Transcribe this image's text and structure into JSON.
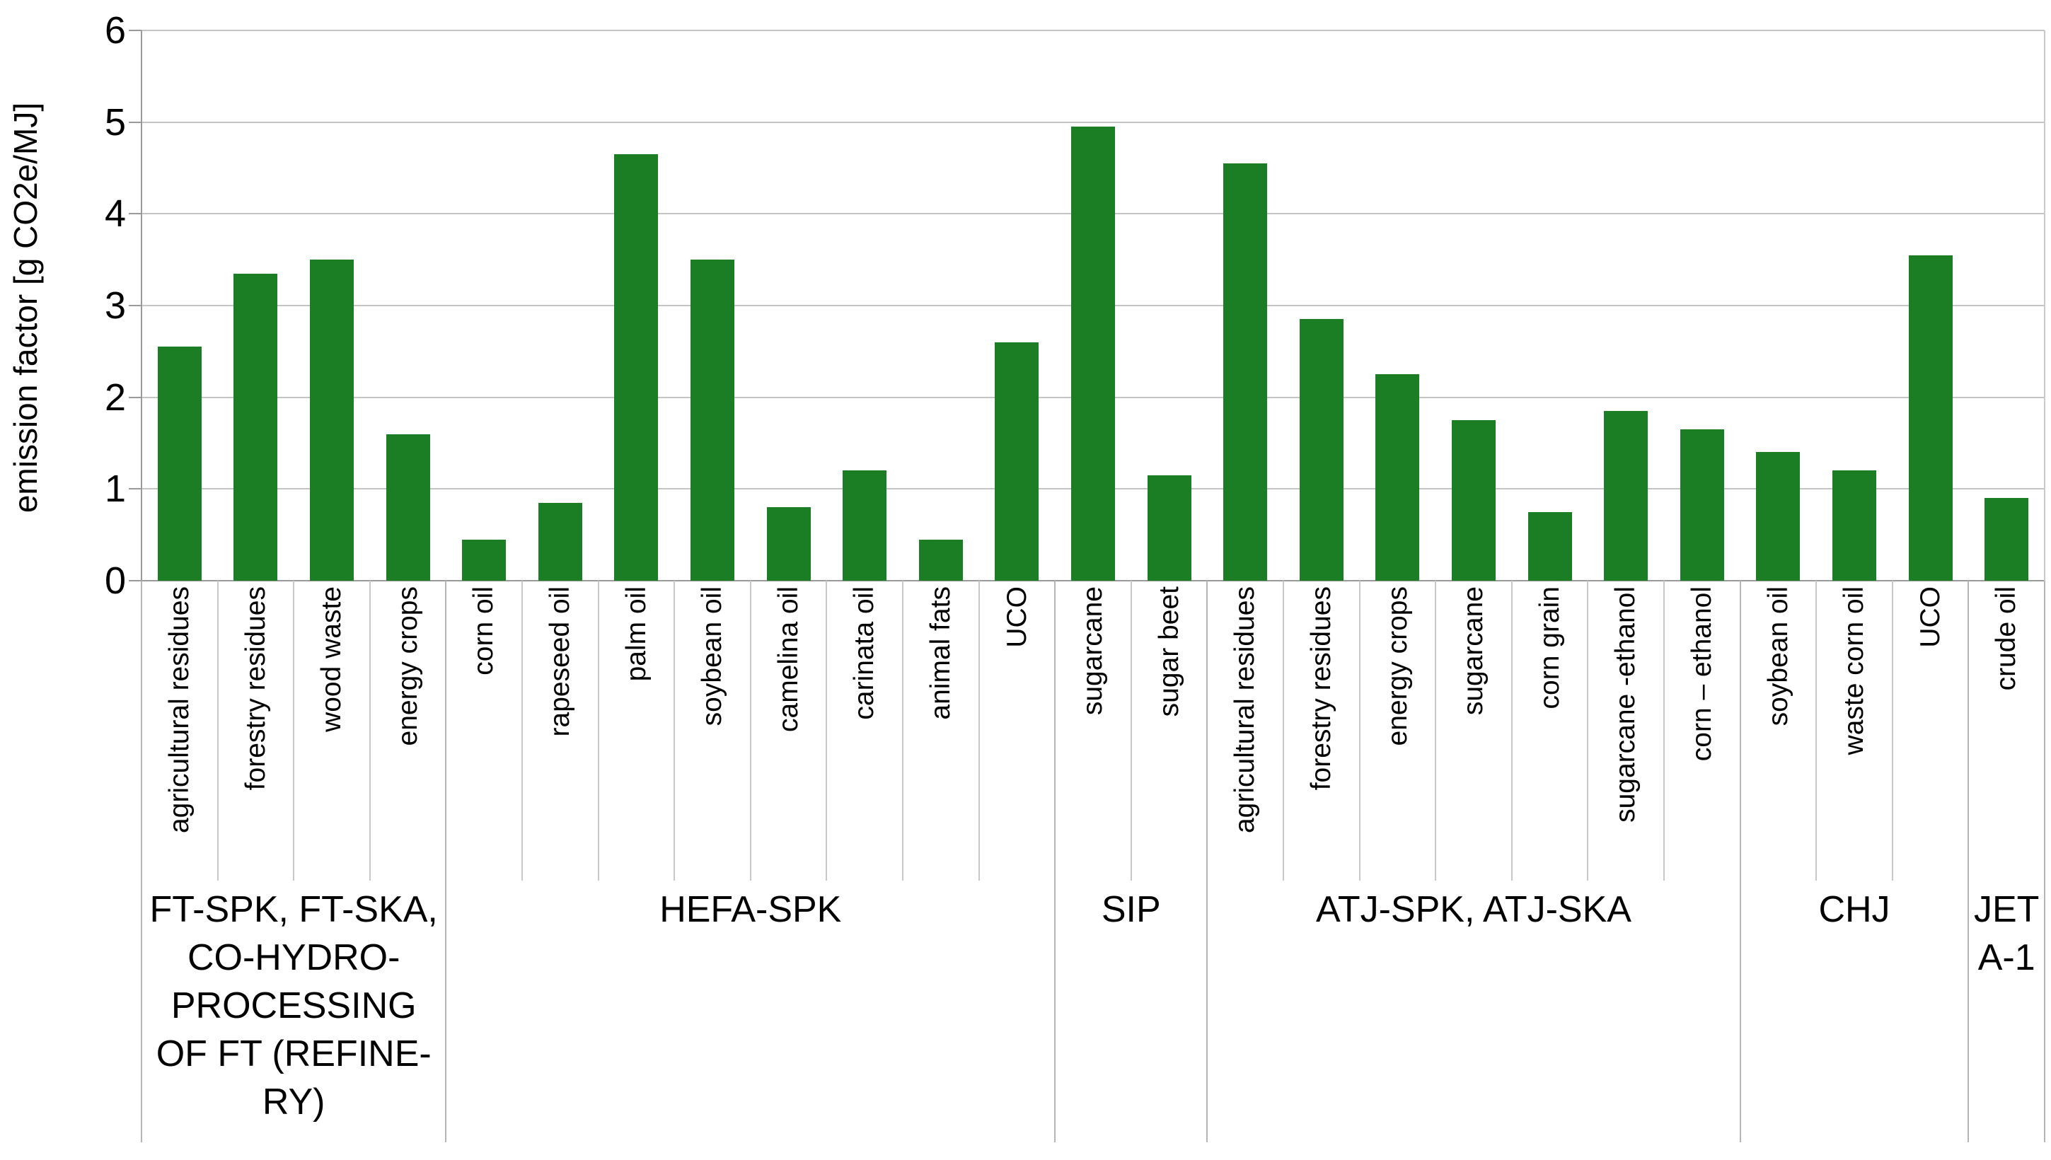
{
  "chart_data": {
    "type": "bar",
    "title": "",
    "xlabel": "",
    "ylabel": "emission factor [g CO2e/MJ]",
    "ylim": [
      0,
      6
    ],
    "ytick_step": 1,
    "ytick_labels": [
      "0",
      "1",
      "2",
      "3",
      "4",
      "5",
      "6"
    ],
    "grid": true,
    "legend": "none",
    "bar_color": "#1b7e24",
    "grid_color": "#c4c4c4",
    "axis_color": "#9a9a9a",
    "text_color": "#000000",
    "categories": [
      "agricultural residues",
      "forestry residues",
      "wood waste",
      "energy crops",
      "corn oil",
      "rapeseed oil",
      "palm oil",
      "soybean oil",
      "camelina oil",
      "carinata oil",
      "animal fats",
      "UCO",
      "sugarcane",
      "sugar beet",
      "agricultural residues",
      "forestry residues",
      "energy crops",
      "sugarcane",
      "corn grain",
      "sugarcane -ethanol",
      "corn – ethanol",
      "soybean oil",
      "waste corn oil",
      "UCO",
      "crude oil"
    ],
    "values": [
      2.55,
      3.35,
      3.5,
      1.6,
      0.45,
      0.85,
      4.65,
      3.5,
      0.8,
      1.2,
      0.45,
      2.6,
      4.95,
      1.15,
      4.55,
      2.85,
      2.25,
      1.75,
      0.75,
      1.85,
      1.65,
      1.4,
      1.2,
      3.55,
      0.9
    ],
    "groups": [
      {
        "label": "FT-SPK, FT-SKA, CO-HYDRO-PROCESSING OF FT (REFINERY)",
        "label_lines": [
          "FT-SPK, FT-SKA,",
          "CO-HYDRO-",
          "PROCESSING",
          "OF FT (REFINE-",
          "RY)"
        ],
        "bars": [
          {
            "label": "agricultural residues",
            "value": 2.55
          },
          {
            "label": "forestry residues",
            "value": 3.35
          },
          {
            "label": "wood waste",
            "value": 3.5
          },
          {
            "label": "energy crops",
            "value": 1.6
          }
        ]
      },
      {
        "label": "HEFA-SPK",
        "label_lines": [
          "HEFA-SPK"
        ],
        "bars": [
          {
            "label": "corn oil",
            "value": 0.45
          },
          {
            "label": "rapeseed oil",
            "value": 0.85
          },
          {
            "label": "palm oil",
            "value": 4.65
          },
          {
            "label": "soybean oil",
            "value": 3.5
          },
          {
            "label": "camelina oil",
            "value": 0.8
          },
          {
            "label": "carinata oil",
            "value": 1.2
          },
          {
            "label": "animal fats",
            "value": 0.45
          },
          {
            "label": "UCO",
            "value": 2.6
          }
        ]
      },
      {
        "label": "SIP",
        "label_lines": [
          "SIP"
        ],
        "bars": [
          {
            "label": "sugarcane",
            "value": 4.95
          },
          {
            "label": "sugar beet",
            "value": 1.15
          }
        ]
      },
      {
        "label": "ATJ-SPK, ATJ-SKA",
        "label_lines": [
          "ATJ-SPK, ATJ-SKA"
        ],
        "bars": [
          {
            "label": "agricultural residues",
            "value": 4.55
          },
          {
            "label": "forestry residues",
            "value": 2.85
          },
          {
            "label": "energy crops",
            "value": 2.25
          },
          {
            "label": "sugarcane",
            "value": 1.75
          },
          {
            "label": "corn grain",
            "value": 0.75
          },
          {
            "label": "sugarcane -ethanol",
            "value": 1.85
          },
          {
            "label": "corn – ethanol",
            "value": 1.65
          }
        ]
      },
      {
        "label": "CHJ",
        "label_lines": [
          "CHJ"
        ],
        "bars": [
          {
            "label": "soybean oil",
            "value": 1.4
          },
          {
            "label": "waste corn oil",
            "value": 1.2
          },
          {
            "label": "UCO",
            "value": 3.55
          }
        ]
      },
      {
        "label": "JET A-1",
        "label_lines": [
          "JET",
          "A-1"
        ],
        "bars": [
          {
            "label": "crude oil",
            "value": 0.9
          }
        ]
      }
    ]
  }
}
